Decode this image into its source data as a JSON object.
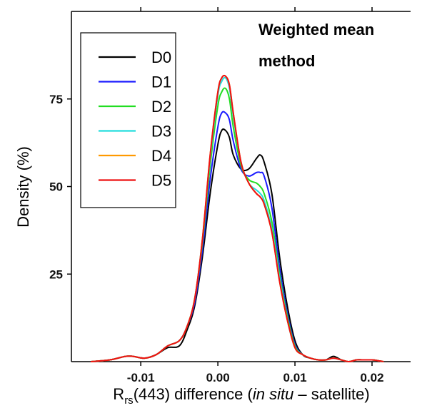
{
  "chart_data": {
    "type": "line",
    "annotation": [
      "Weighted mean",
      "method"
    ],
    "ylabel": "Density (%)",
    "xlabel": {
      "main": "R",
      "subscript": "rs",
      "pre_italic": "(443) difference (",
      "italic": "in situ",
      "post_italic": " – satellite)"
    },
    "xlim": [
      -0.019,
      0.025
    ],
    "ylim": [
      0,
      100
    ],
    "x_ticks": [
      -0.01,
      0.0,
      0.01,
      0.02
    ],
    "x_tick_labels": [
      "-0.01",
      "0.00",
      "0.01",
      "0.02"
    ],
    "y_ticks": [
      25,
      50,
      75
    ],
    "y_tick_labels": [
      "25",
      "50",
      "75"
    ],
    "legend_position": "top-left",
    "series": [
      {
        "name": "D0",
        "color": "#000000",
        "x": [
          -0.0165,
          -0.014,
          -0.012,
          -0.011,
          -0.0095,
          -0.008,
          -0.0065,
          -0.005,
          -0.004,
          -0.003,
          -0.002,
          -0.001,
          0.0,
          0.0005,
          0.001,
          0.0015,
          0.002,
          0.003,
          0.004,
          0.005,
          0.0055,
          0.006,
          0.007,
          0.008,
          0.009,
          0.01,
          0.011,
          0.012,
          0.013,
          0.014,
          0.015,
          0.016,
          0.017,
          0.018,
          0.019,
          0.02,
          0.021,
          0.0215
        ],
        "y": [
          0,
          0.5,
          1.5,
          1.5,
          1,
          2,
          4,
          4.5,
          9,
          16,
          30,
          48,
          62,
          66,
          66,
          64,
          59,
          55,
          55,
          58,
          59,
          57,
          48,
          30,
          16,
          6,
          2,
          1,
          0.5,
          0.5,
          1.5,
          0.5,
          0,
          0.5,
          0.5,
          0.5,
          0.2,
          0
        ]
      },
      {
        "name": "D1",
        "color": "#1a1aff",
        "x": [
          -0.0165,
          -0.014,
          -0.012,
          -0.011,
          -0.0095,
          -0.008,
          -0.0065,
          -0.005,
          -0.004,
          -0.003,
          -0.002,
          -0.001,
          0.0,
          0.0005,
          0.001,
          0.0015,
          0.002,
          0.003,
          0.004,
          0.005,
          0.0055,
          0.006,
          0.007,
          0.008,
          0.009,
          0.01,
          0.011,
          0.012,
          0.013,
          0.014,
          0.015,
          0.016,
          0.017,
          0.018,
          0.019,
          0.02,
          0.021,
          0.0215
        ],
        "y": [
          0,
          0.5,
          1.5,
          1.5,
          1,
          2,
          4.5,
          6,
          10,
          17,
          32,
          52,
          67,
          71,
          71,
          69,
          63,
          55,
          53,
          54,
          54,
          53,
          44,
          27,
          14,
          5,
          2,
          1,
          0.5,
          0.5,
          1,
          0.5,
          0,
          0.5,
          0.5,
          0.5,
          0.2,
          0
        ]
      },
      {
        "name": "D2",
        "color": "#22dd22",
        "x": [
          -0.0165,
          -0.014,
          -0.012,
          -0.011,
          -0.0095,
          -0.008,
          -0.0065,
          -0.005,
          -0.004,
          -0.003,
          -0.002,
          -0.001,
          0.0,
          0.0005,
          0.001,
          0.0015,
          0.002,
          0.003,
          0.004,
          0.005,
          0.0055,
          0.006,
          0.007,
          0.008,
          0.009,
          0.01,
          0.011,
          0.012,
          0.013,
          0.014,
          0.015,
          0.016,
          0.017,
          0.018,
          0.019,
          0.02,
          0.021,
          0.0215
        ],
        "y": [
          0,
          0.5,
          1.5,
          1.5,
          1,
          2,
          4.5,
          6,
          10,
          18,
          34,
          56,
          73,
          77,
          78,
          75,
          67,
          56,
          52,
          51,
          50,
          48,
          40,
          25,
          13,
          4.5,
          2,
          1,
          0.5,
          0.5,
          1,
          0.5,
          0,
          0.5,
          0.5,
          0.5,
          0.2,
          0
        ]
      },
      {
        "name": "D3",
        "color": "#22dddd",
        "x": [
          -0.0165,
          -0.014,
          -0.012,
          -0.011,
          -0.0095,
          -0.008,
          -0.0065,
          -0.005,
          -0.004,
          -0.003,
          -0.002,
          -0.001,
          0.0,
          0.0005,
          0.001,
          0.0015,
          0.002,
          0.003,
          0.004,
          0.005,
          0.0055,
          0.006,
          0.007,
          0.008,
          0.009,
          0.01,
          0.011,
          0.012,
          0.013,
          0.014,
          0.015,
          0.016,
          0.017,
          0.018,
          0.019,
          0.02,
          0.021,
          0.0215
        ],
        "y": [
          0,
          0.5,
          1.5,
          1.5,
          1,
          2,
          4.5,
          6,
          10,
          18,
          35,
          58,
          76,
          80,
          81,
          78,
          70,
          57,
          51,
          49,
          48,
          46,
          38,
          24,
          12,
          4,
          2,
          1,
          0.5,
          0.5,
          1,
          0.5,
          0,
          0.5,
          0.5,
          0.5,
          0.2,
          0
        ]
      },
      {
        "name": "D4",
        "color": "#ff9900",
        "x": [
          -0.0165,
          -0.014,
          -0.012,
          -0.011,
          -0.0095,
          -0.008,
          -0.0065,
          -0.005,
          -0.004,
          -0.003,
          -0.002,
          -0.001,
          0.0,
          0.0005,
          0.001,
          0.0015,
          0.002,
          0.003,
          0.004,
          0.005,
          0.0055,
          0.006,
          0.007,
          0.008,
          0.009,
          0.01,
          0.011,
          0.012,
          0.013,
          0.014,
          0.015,
          0.016,
          0.017,
          0.018,
          0.019,
          0.02,
          0.021,
          0.0215
        ],
        "y": [
          0,
          0.5,
          1.5,
          1.5,
          1,
          2,
          4.5,
          6,
          10,
          18,
          35,
          59,
          77,
          81,
          81.5,
          79,
          71,
          57,
          51,
          48,
          47,
          45,
          37,
          23,
          12,
          4,
          2,
          1,
          0.5,
          0.5,
          1,
          0.5,
          0,
          0.5,
          0.5,
          0.5,
          0.2,
          0
        ]
      },
      {
        "name": "D5",
        "color": "#ee1111",
        "x": [
          -0.0165,
          -0.014,
          -0.012,
          -0.011,
          -0.0095,
          -0.008,
          -0.0065,
          -0.005,
          -0.004,
          -0.003,
          -0.002,
          -0.001,
          0.0,
          0.0005,
          0.001,
          0.0015,
          0.002,
          0.003,
          0.004,
          0.005,
          0.0055,
          0.006,
          0.007,
          0.008,
          0.009,
          0.01,
          0.011,
          0.012,
          0.013,
          0.014,
          0.015,
          0.016,
          0.017,
          0.018,
          0.019,
          0.02,
          0.021,
          0.0215
        ],
        "y": [
          0,
          0.5,
          1.5,
          1.5,
          1,
          2,
          4.5,
          6,
          10,
          18,
          35,
          59,
          77,
          81,
          81.5,
          79,
          71,
          57,
          51,
          48,
          47,
          45,
          37,
          23,
          12,
          4,
          2,
          1,
          0.5,
          0.5,
          1,
          0.5,
          0,
          0.5,
          0.5,
          0.5,
          0.2,
          0
        ]
      }
    ]
  }
}
